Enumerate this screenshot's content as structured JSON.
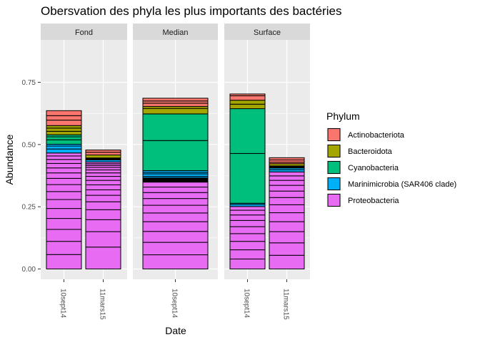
{
  "chart_data": {
    "type": "bar",
    "stacked": true,
    "title": "Obersvation des phyla les plus importants des bactéries",
    "xlabel": "Date",
    "ylabel": "Abundance",
    "ylim": [
      0,
      0.9
    ],
    "yticks": [
      0.0,
      0.25,
      0.5,
      0.75
    ],
    "ytick_labels": [
      "0.00",
      "0.25",
      "0.50",
      "0.75"
    ],
    "grid": true,
    "legend_title": "Phylum",
    "legend_position": "right",
    "series": [
      {
        "name": "Actinobacteriota",
        "color": "#F8766D"
      },
      {
        "name": "Bacteroidota",
        "color": "#A3A500"
      },
      {
        "name": "Cyanobacteria",
        "color": "#00BF7D"
      },
      {
        "name": "Marinimicrobia (SAR406 clade)",
        "color": "#00B0F6"
      },
      {
        "name": "Proteobacteria",
        "color": "#E76BF3"
      }
    ],
    "unlabeled_color": "#000000",
    "facets": [
      {
        "label": "Fond",
        "bars": [
          {
            "x": "10sept14",
            "segments": [
              {
                "phylum": 4,
                "values": [
                  0.058,
                  0.053,
                  0.048,
                  0.044,
                  0.04,
                  0.036,
                  0.032,
                  0.028,
                  0.025,
                  0.022,
                  0.02,
                  0.018,
                  0.016,
                  0.014,
                  0.012
                ]
              },
              {
                "phylum": 3,
                "values": [
                  0.016,
                  0.012,
                  0.007
                ]
              },
              {
                "phylum": 2,
                "values": [
                  0.018,
                  0.012,
                  0.008
                ]
              },
              {
                "phylum": 1,
                "values": [
                  0.014,
                  0.013,
                  0.01
                ]
              },
              {
                "phylum": 0,
                "values": [
                  0.022,
                  0.018,
                  0.02
                ]
              }
            ]
          },
          {
            "x": "11mars15",
            "segments": [
              {
                "phylum": 4,
                "values": [
                  0.088,
                  0.062,
                  0.048,
                  0.04,
                  0.032,
                  0.026,
                  0.022,
                  0.02,
                  0.018,
                  0.016,
                  0.014,
                  0.012,
                  0.01,
                  0.008,
                  0.007,
                  0.007
                ]
              },
              {
                "phylum": 3,
                "values": [
                  0.008
                ]
              },
              {
                "phylum": -1,
                "values": [
                  0.004,
                  0.004
                ]
              },
              {
                "phylum": 1,
                "values": [
                  0.012
                ]
              },
              {
                "phylum": 0,
                "values": [
                  0.011,
                  0.009
                ]
              }
            ]
          }
        ]
      },
      {
        "label": "Median",
        "bars": [
          {
            "x": "10sept14",
            "segments": [
              {
                "phylum": 4,
                "values": [
                  0.057,
                  0.05,
                  0.044,
                  0.039,
                  0.035,
                  0.031,
                  0.027,
                  0.024,
                  0.022,
                  0.02
                ]
              },
              {
                "phylum": -1,
                "values": [
                  0.017
                ]
              },
              {
                "phylum": 3,
                "values": [
                  0.006,
                  0.01,
                  0.006,
                  0.007
                ]
              },
              {
                "phylum": 2,
                "values": [
                  0.121,
                  0.107
                ]
              },
              {
                "phylum": 1,
                "values": [
                  0.022,
                  0.008
                ]
              },
              {
                "phylum": 0,
                "values": [
                  0.013,
                  0.009,
                  0.011
                ]
              }
            ]
          }
        ]
      },
      {
        "label": "Surface",
        "bars": [
          {
            "x": "10sept14",
            "segments": [
              {
                "phylum": 4,
                "values": [
                  0.04,
                  0.037,
                  0.034,
                  0.031,
                  0.028,
                  0.025,
                  0.022,
                  0.019,
                  0.015
                ]
              },
              {
                "phylum": 3,
                "values": [
                  0.008,
                  0.005
                ]
              },
              {
                "phylum": 2,
                "values": [
                  0.2,
                  0.18
                ]
              },
              {
                "phylum": 1,
                "values": [
                  0.018,
                  0.016
                ]
              },
              {
                "phylum": 0,
                "values": [
                  0.018,
                  0.007
                ]
              }
            ]
          },
          {
            "x": "11mars15",
            "segments": [
              {
                "phylum": 4,
                "values": [
                  0.055,
                  0.05,
                  0.045,
                  0.04,
                  0.036,
                  0.032,
                  0.029,
                  0.026,
                  0.023,
                  0.02,
                  0.018,
                  0.016
                ]
              },
              {
                "phylum": 3,
                "values": [
                  0.009,
                  0.007
                ]
              },
              {
                "phylum": -1,
                "values": [
                  0.008
                ]
              },
              {
                "phylum": 1,
                "values": [
                  0.009
                ]
              },
              {
                "phylum": 0,
                "values": [
                  0.006,
                  0.009,
                  0.009
                ]
              }
            ]
          }
        ]
      }
    ]
  }
}
